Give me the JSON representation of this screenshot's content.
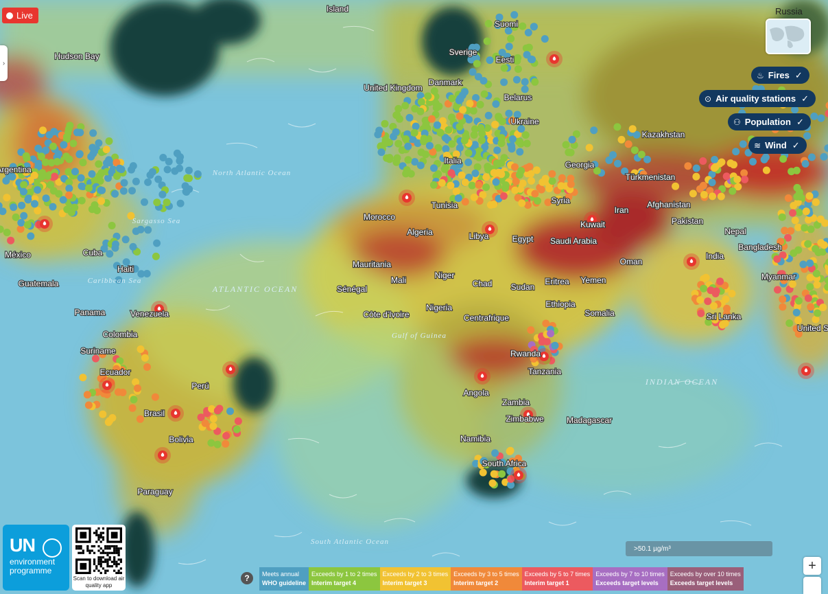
{
  "live_label": "Live",
  "minimap_label": "Russia",
  "layers": {
    "fires": "Fires",
    "air_quality_stations": "Air quality stations",
    "population": "Population",
    "wind": "Wind"
  },
  "branding": {
    "un": "UN",
    "line1": "environment",
    "line2": "programme",
    "qr_caption": "Scan to download air quality app"
  },
  "help_label": "?",
  "scale_label": ">50.1 µg/m³",
  "zoom_in_label": "+",
  "legend": [
    {
      "line1": "Meets annual",
      "line2": "WHO guideline",
      "color": "#4f9fc1"
    },
    {
      "line1": "Exceeds by 1 to 2 times",
      "line2": "Interim target 4",
      "color": "#8cc63f"
    },
    {
      "line1": "Exceeds by 2 to 3 times",
      "line2": "Interim target 3",
      "color": "#f1c232"
    },
    {
      "line1": "Exceeds by 3 to 5 times",
      "line2": "Interim target 2",
      "color": "#f0893a"
    },
    {
      "line1": "Exceeds by 5 to 7 times",
      "line2": "Interim target 1",
      "color": "#ec5a5f"
    },
    {
      "line1": "Exceeds by 7 to 10 times",
      "line2": "Exceeds target levels",
      "color": "#a76ec2"
    },
    {
      "line1": "Exceeds by over 10 times",
      "line2": "Exceeds target levels",
      "color": "#9a5f7a"
    }
  ],
  "countries": [
    "Island",
    "Suomi",
    "Sverige",
    "Eesti",
    "Danmark",
    "United Kingdom",
    "Belarus",
    "Ukraine",
    "Kazakhstan",
    "Italia",
    "Georgia",
    "Türkmenistan",
    "Afghanistan",
    "Pakistan",
    "Iran",
    "Syria",
    "Kuwait",
    "Saudi Arabia",
    "Oman",
    "Yemen",
    "Eritrea",
    "Ethiopia",
    "Somalia",
    "Sudan",
    "Egypt",
    "Libya",
    "Tunisia",
    "Algeria",
    "Morocco",
    "Mauritania",
    "Mali",
    "Niger",
    "Chad",
    "Sénégal",
    "Côte d'Ivoire",
    "Nigeria",
    "Centrafrique",
    "Rwanda",
    "Tanzania",
    "Angola",
    "Zambia",
    "Zimbabwe",
    "Madagascar",
    "Namibia",
    "South Africa",
    "India",
    "Bangladesh",
    "Myanmar",
    "Sri Lanka",
    "Nepal",
    "Hudson Bay",
    "México",
    "Cuba",
    "Haiti",
    "Guatemala",
    "Panama",
    "Venezuela",
    "Colombia",
    "Suriname",
    "Ecuador",
    "Perú",
    "Brasil",
    "Bolivia",
    "Paraguay",
    "Argentina",
    "United States",
    "Bra"
  ],
  "seas": [
    "North Atlantic Ocean",
    "ATLANTIC OCEAN",
    "Sargasso Sea",
    "Caribbean Sea",
    "Gulf of Guinea",
    "INDIAN OCEAN",
    "South Atlantic Ocean"
  ],
  "colors": {
    "fire": "#e8362f",
    "navy": "#12385f",
    "un_blue": "#0c9edb"
  }
}
